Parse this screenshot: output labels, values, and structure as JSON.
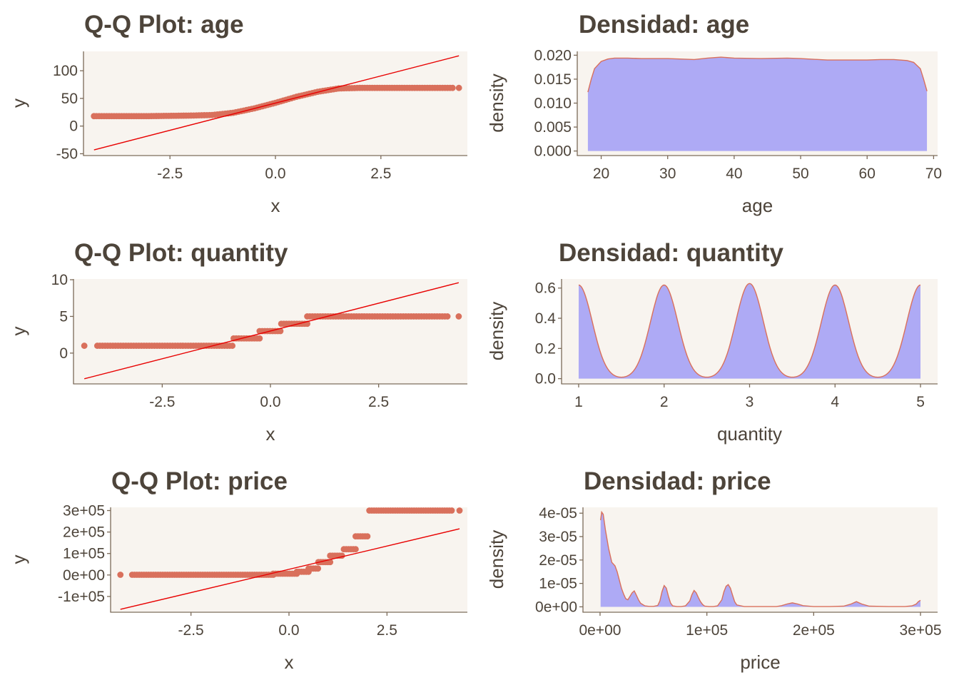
{
  "colors": {
    "plot_bg": "#f8f4ef",
    "axis": "#7b6a58",
    "text": "#4d443a",
    "points": "#d9705c",
    "ref_line": "#e80000",
    "density_fill": "#aeaaf5",
    "density_line": "#d9705c"
  },
  "chart_data": [
    {
      "type": "scatter",
      "title": "Q-Q Plot: age",
      "xlabel": "x",
      "ylabel": "y",
      "xlim": [
        -4.55,
        4.55
      ],
      "ylim": [
        -52,
        135
      ],
      "xticks": [
        -2.5,
        0,
        2.5
      ],
      "xtick_labels": [
        "-2.5",
        "0.0",
        "2.5"
      ],
      "yticks": [
        -50,
        0,
        50,
        100
      ],
      "ytick_labels": [
        "-50",
        "0",
        "50",
        "100"
      ],
      "grid": false,
      "qq_points": {
        "type": "smooth",
        "x": [
          -4.3,
          -4.0,
          -3.0,
          -2.0,
          -1.5,
          -1.0,
          -0.5,
          0,
          0.5,
          1.0,
          1.5,
          2.0,
          3.0,
          4.2
        ],
        "y": [
          18,
          18,
          18,
          19,
          20,
          24,
          32,
          42,
          53,
          62,
          68,
          69,
          69,
          69
        ],
        "outliers": [
          [
            -4.3,
            18
          ],
          [
            4.2,
            69
          ],
          [
            4.35,
            69
          ]
        ]
      },
      "reference_line": {
        "x": [
          -4.3,
          4.35
        ],
        "y": [
          -43,
          127
        ]
      }
    },
    {
      "type": "area",
      "title": "Densidad: age",
      "xlabel": "age",
      "ylabel": "density",
      "xlim": [
        16.4,
        70.6
      ],
      "ylim": [
        -0.0008,
        0.0208
      ],
      "xticks": [
        20,
        30,
        40,
        50,
        60,
        70
      ],
      "xtick_labels": [
        "20",
        "30",
        "40",
        "50",
        "60",
        "70"
      ],
      "yticks": [
        0,
        0.005,
        0.01,
        0.015,
        0.02
      ],
      "ytick_labels": [
        "0.000",
        "0.005",
        "0.010",
        "0.015",
        "0.020"
      ],
      "grid": false,
      "x": [
        18,
        18.5,
        19,
        20,
        21,
        22,
        24,
        26,
        30,
        34,
        36,
        38,
        40,
        44,
        48,
        50,
        54,
        58,
        60,
        62,
        64,
        66,
        67,
        68,
        68.5,
        69
      ],
      "y": [
        0.0123,
        0.015,
        0.0172,
        0.0187,
        0.0192,
        0.0194,
        0.0194,
        0.0193,
        0.0193,
        0.0191,
        0.0194,
        0.0196,
        0.0194,
        0.0193,
        0.0194,
        0.0193,
        0.019,
        0.019,
        0.019,
        0.0191,
        0.0191,
        0.0189,
        0.0185,
        0.0172,
        0.015,
        0.0125
      ]
    },
    {
      "type": "scatter",
      "title": "Q-Q Plot: quantity",
      "xlabel": "x",
      "ylabel": "y",
      "xlim": [
        -4.55,
        4.55
      ],
      "ylim": [
        -4.1,
        10.1
      ],
      "xticks": [
        -2.5,
        0,
        2.5
      ],
      "xtick_labels": [
        "-2.5",
        "0.0",
        "2.5"
      ],
      "yticks": [
        0,
        5,
        10
      ],
      "ytick_labels": [
        "0",
        "5",
        "10"
      ],
      "grid": false,
      "qq_points": {
        "type": "steps",
        "segments": [
          [
            -4.0,
            -0.85,
            1
          ],
          [
            -0.85,
            -0.25,
            2
          ],
          [
            -0.25,
            0.25,
            3
          ],
          [
            0.25,
            0.85,
            4
          ],
          [
            0.85,
            4.1,
            5
          ]
        ],
        "outliers": [
          [
            -4.3,
            1
          ],
          [
            4.35,
            5
          ]
        ]
      },
      "reference_line": {
        "x": [
          -4.3,
          4.35
        ],
        "y": [
          -3.5,
          9.6
        ]
      }
    },
    {
      "type": "area",
      "title": "Densidad: quantity",
      "xlabel": "quantity",
      "ylabel": "density",
      "xlim": [
        0.8,
        5.2
      ],
      "ylim": [
        -0.03,
        0.66
      ],
      "xticks": [
        1,
        2,
        3,
        4,
        5
      ],
      "xtick_labels": [
        "1",
        "2",
        "3",
        "4",
        "5"
      ],
      "yticks": [
        0,
        0.2,
        0.4,
        0.6
      ],
      "ytick_labels": [
        "0.0",
        "0.2",
        "0.4",
        "0.6"
      ],
      "grid": false,
      "peaks": [
        {
          "x": 1,
          "height": 0.62
        },
        {
          "x": 2,
          "height": 0.62
        },
        {
          "x": 3,
          "height": 0.63
        },
        {
          "x": 4,
          "height": 0.62
        },
        {
          "x": 5,
          "height": 0.62
        }
      ]
    },
    {
      "type": "scatter",
      "title": "Q-Q Plot: price",
      "xlabel": "x",
      "ylabel": "y",
      "xlim": [
        -4.55,
        4.55
      ],
      "ylim": [
        -170000,
        315000
      ],
      "xticks": [
        -2.5,
        0,
        2.5
      ],
      "xtick_labels": [
        "-2.5",
        "0.0",
        "2.5"
      ],
      "yticks": [
        -100000,
        0,
        100000,
        200000,
        300000
      ],
      "ytick_labels": [
        "-1e+05",
        "0e+00",
        "1e+05",
        "2e+05",
        "3e+05"
      ],
      "grid": false,
      "qq_points": {
        "type": "steps",
        "segments": [
          [
            -4.0,
            -0.4,
            1000
          ],
          [
            -0.4,
            0.2,
            6000
          ],
          [
            0.2,
            0.5,
            15000
          ],
          [
            0.5,
            0.75,
            30000
          ],
          [
            0.75,
            1.05,
            60000
          ],
          [
            1.05,
            1.4,
            90000
          ],
          [
            1.4,
            1.7,
            120000
          ],
          [
            1.7,
            2.05,
            180000
          ],
          [
            2.05,
            4.2,
            300000
          ]
        ],
        "outliers": [
          [
            -4.3,
            1000
          ],
          [
            4.35,
            300000
          ]
        ]
      },
      "reference_line": {
        "x": [
          -4.3,
          4.35
        ],
        "y": [
          -160000,
          215000
        ]
      }
    },
    {
      "type": "area",
      "title": "Densidad: price",
      "xlabel": "price",
      "ylabel": "density",
      "xlim": [
        -16000,
        316000
      ],
      "ylim": [
        -2e-06,
        4.25e-05
      ],
      "xticks": [
        0,
        100000,
        200000,
        300000
      ],
      "xtick_labels": [
        "0e+00",
        "1e+05",
        "2e+05",
        "3e+05"
      ],
      "yticks": [
        0,
        1e-05,
        2e-05,
        3e-05,
        4e-05
      ],
      "ytick_labels": [
        "0e+00",
        "1e-05",
        "2e-05",
        "3e-05",
        "4e-05"
      ],
      "grid": false,
      "x": [
        500,
        1500,
        3000,
        5000,
        8000,
        11000,
        14000,
        16000,
        18000,
        20000,
        22000,
        24000,
        26000,
        28000,
        30000,
        32000,
        34000,
        36000,
        38000,
        42000,
        46000,
        50000,
        54000,
        56000,
        58000,
        60000,
        62000,
        64000,
        66000,
        68000,
        72000,
        76000,
        80000,
        84000,
        86000,
        88000,
        90000,
        92000,
        94000,
        96000,
        98000,
        102000,
        106000,
        110000,
        114000,
        116000,
        118000,
        120000,
        122000,
        124000,
        126000,
        128000,
        135000,
        150000,
        165000,
        170000,
        175000,
        180000,
        185000,
        190000,
        200000,
        215000,
        228000,
        235000,
        240000,
        245000,
        252000,
        270000,
        285000,
        292000,
        296000,
        298000,
        300000
      ],
      "y": [
        3.7e-05,
        4.05e-05,
        3.95e-05,
        3.3e-05,
        2.5e-05,
        1.9e-05,
        1.75e-05,
        1.5e-05,
        1.15e-05,
        8e-06,
        5.5e-06,
        3.5e-06,
        3e-06,
        4.5e-06,
        6e-06,
        6.8e-06,
        5e-06,
        3e-06,
        1.5e-06,
        4e-07,
        2e-07,
        2e-07,
        6e-07,
        2.5e-06,
        6.5e-06,
        9.1e-06,
        8e-06,
        4.5e-06,
        1.6e-06,
        4e-07,
        1e-07,
        1e-07,
        4e-07,
        2.5e-06,
        5.2e-06,
        7e-06,
        6e-06,
        4e-06,
        2.2e-06,
        1e-06,
        3e-07,
        1e-07,
        1e-07,
        4e-07,
        3e-06,
        6.5e-06,
        8.8e-06,
        9.5e-06,
        8e-06,
        5e-06,
        2.2e-06,
        8e-07,
        1e-07,
        1e-07,
        1e-07,
        5e-07,
        1.2e-06,
        1.7e-06,
        1.2e-06,
        5e-07,
        1e-07,
        1e-07,
        3e-07,
        1.2e-06,
        2.2e-06,
        1.2e-06,
        3e-07,
        1e-07,
        1e-07,
        4e-07,
        1.2e-06,
        2.2e-06,
        2.8e-06
      ]
    }
  ]
}
